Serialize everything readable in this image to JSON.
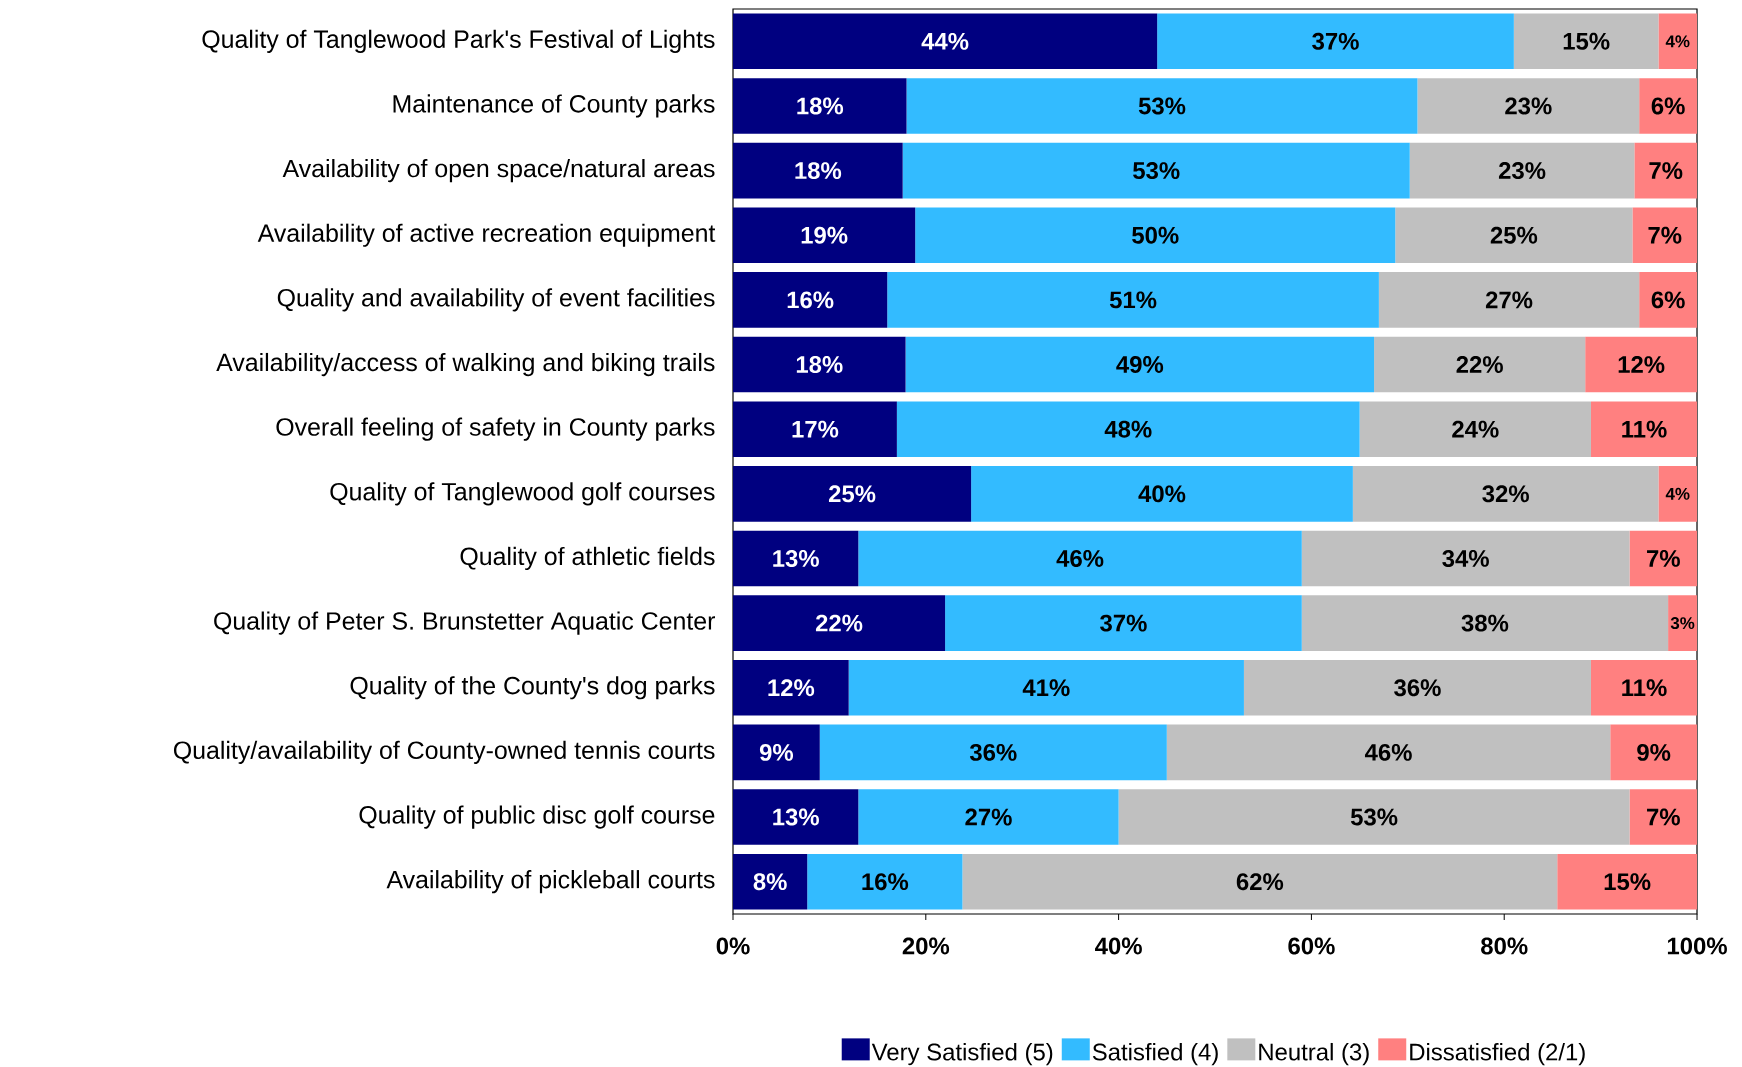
{
  "chart_data": {
    "type": "bar",
    "orientation": "horizontal",
    "stacked": true,
    "categories": [
      "Quality of Tanglewood Park's Festival of Lights",
      "Maintenance of County parks",
      "Availability of open space/natural areas",
      "Availability of active recreation equipment",
      "Quality and availability of event facilities",
      "Availability/access of walking and biking trails",
      "Overall feeling of safety in County parks",
      "Quality of Tanglewood golf courses",
      "Quality of athletic fields",
      "Quality of Peter S. Brunstetter Aquatic Center",
      "Quality of the County's dog parks",
      "Quality/availability of County-owned tennis courts",
      "Quality of public disc golf course",
      "Availability of pickleball courts"
    ],
    "series": [
      {
        "name": "Very Satisfied (5)",
        "color": "#000080",
        "values": [
          44,
          18,
          17.6,
          18.9,
          16,
          17.9,
          17,
          24.7,
          13,
          22,
          12,
          9,
          13,
          7.7
        ],
        "value_labels": [
          "44%",
          "18%",
          "18%",
          "19%",
          "16%",
          "18%",
          "17%",
          "25%",
          "13%",
          "22%",
          "12%",
          "9%",
          "13%",
          "8%"
        ]
      },
      {
        "name": "Satisfied (4)",
        "color": "#33bbff",
        "values": [
          37,
          53,
          52.6,
          49.8,
          51,
          48.6,
          48,
          39.6,
          46,
          37,
          41,
          36,
          27,
          16.1
        ],
        "value_labels": [
          "37%",
          "53%",
          "53%",
          "50%",
          "51%",
          "49%",
          "48%",
          "40%",
          "46%",
          "37%",
          "41%",
          "36%",
          "27%",
          "16%"
        ]
      },
      {
        "name": "Neutral (3)",
        "color": "#c0c0c0",
        "values": [
          15,
          23,
          23.3,
          24.6,
          27,
          21.9,
          24,
          31.7,
          34,
          38,
          36,
          46,
          53,
          61.7
        ],
        "value_labels": [
          "15%",
          "23%",
          "23%",
          "25%",
          "27%",
          "22%",
          "24%",
          "32%",
          "34%",
          "38%",
          "36%",
          "46%",
          "53%",
          "62%"
        ]
      },
      {
        "name": "Dissatisfied (2/1)",
        "color": "#ff8080",
        "values": [
          4,
          6,
          6.5,
          6.7,
          6,
          11.6,
          11,
          4.0,
          7,
          3,
          11,
          9,
          7,
          14.5
        ],
        "value_labels": [
          "4%",
          "6%",
          "7%",
          "7%",
          "6%",
          "12%",
          "11%",
          "4%",
          "7%",
          "3%",
          "11%",
          "9%",
          "7%",
          "15%"
        ]
      }
    ],
    "xlim": [
      0,
      100
    ],
    "xticks": [
      {
        "value": 0,
        "label": "0%"
      },
      {
        "value": 20,
        "label": "20%"
      },
      {
        "value": 40,
        "label": "40%"
      },
      {
        "value": 60,
        "label": "60%"
      },
      {
        "value": 80,
        "label": "80%"
      },
      {
        "value": 100,
        "label": "100%"
      }
    ],
    "legend": "bottom",
    "grid": false
  }
}
